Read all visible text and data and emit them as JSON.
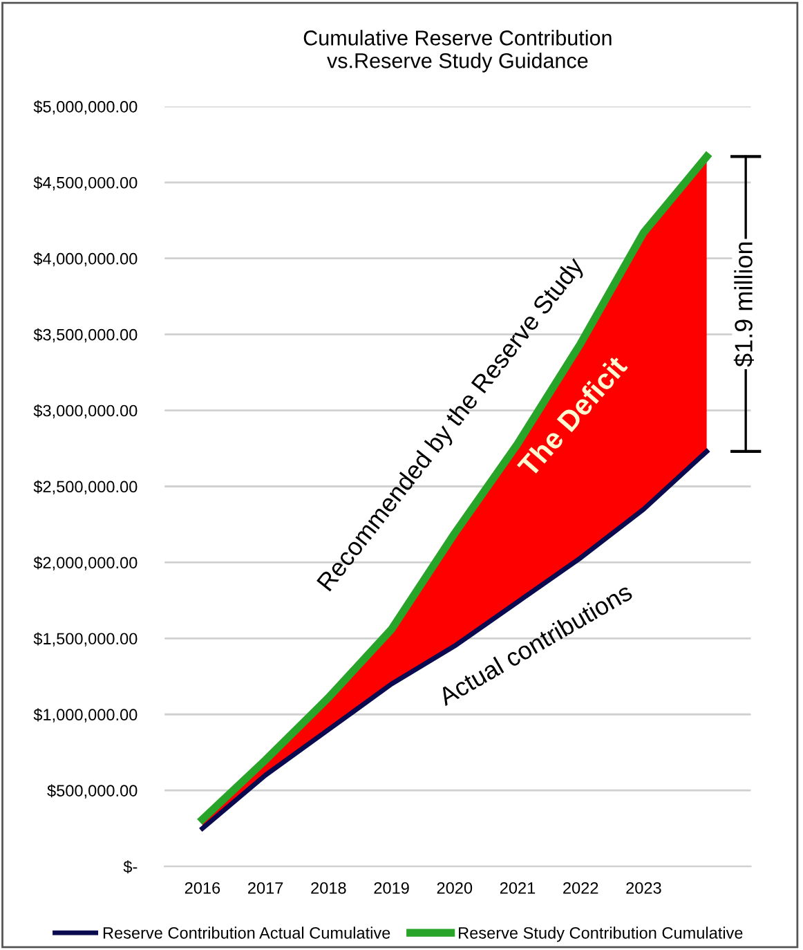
{
  "chart_data": {
    "type": "line",
    "title": "Cumulative Reserve Contribution\nvs.Reserve Study Guidance",
    "categories": [
      "2016",
      "2017",
      "2018",
      "2019",
      "2020",
      "2021",
      "2022",
      "2023",
      null
    ],
    "series": [
      {
        "name": "Reserve Contribution Actual Cumulative",
        "color": "#0a0a50",
        "values": [
          250000,
          600000,
          900000,
          1200000,
          1450000,
          1740000,
          2030000,
          2350000,
          2730000
        ]
      },
      {
        "name": "Reserve Study Contribution Cumulative",
        "color": "#28a428",
        "values": [
          310000,
          700000,
          1110000,
          1560000,
          2190000,
          2780000,
          3440000,
          4170000,
          4670000
        ],
        "lower": [
          250000,
          600000,
          900000,
          1200000,
          1450000,
          1740000,
          2030000,
          2350000,
          2730000
        ],
        "upper": [
          310000,
          700000,
          1110000,
          1560000,
          2190000,
          2780000,
          3440000,
          4170000,
          4670000
        ]
      }
    ],
    "ylim": [
      0,
      5000000
    ],
    "yticks": [
      {
        "value": 0,
        "label": "$-"
      },
      {
        "value": 500000,
        "label": "$500,000.00"
      },
      {
        "value": 1000000,
        "label": "$1,000,000.00"
      },
      {
        "value": 1500000,
        "label": "$1,500,000.00"
      },
      {
        "value": 2000000,
        "label": "$2,000,000.00"
      },
      {
        "value": 2500000,
        "label": "$2,500,000.00"
      },
      {
        "value": 3000000,
        "label": "$3,000,000.00"
      },
      {
        "value": 3500000,
        "label": "$3,500,000.00"
      },
      {
        "value": 4000000,
        "label": "$4,000,000.00"
      },
      {
        "value": 4500000,
        "label": "$4,500,000.00"
      },
      {
        "value": 5000000,
        "label": "$5,000,000.00"
      }
    ],
    "annotations": [
      "Recommended by the Reserve Study",
      "The Deficit",
      "Actual contributions",
      "$1.9 million"
    ],
    "grid": "y",
    "legend": "bottom",
    "marker": "none",
    "line_style": "solid"
  }
}
